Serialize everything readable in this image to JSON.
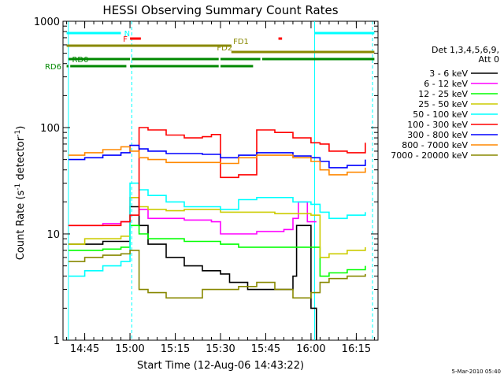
{
  "chart_data": {
    "type": "line",
    "title": "HESSI Observing Summary Count Rates",
    "xlabel": "Start Time (12-Aug-06 14:43:22)",
    "ylabel_pre": "Count Rate (s",
    "ylabel_sup": "-1",
    "ylabel_mid": " detector",
    "ylabel_sup2": "-1",
    "ylabel_post": ")",
    "yscale": "log",
    "ylim": [
      1,
      1000
    ],
    "xlim_minutes": [
      14.63,
      16.37
    ],
    "x_ticks": [
      {
        "label": "14:45",
        "v": 14.75
      },
      {
        "label": "15:00",
        "v": 15.0
      },
      {
        "label": "15:15",
        "v": 15.25
      },
      {
        "label": "15:30",
        "v": 15.5
      },
      {
        "label": "15:45",
        "v": 15.75
      },
      {
        "label": "16:00",
        "v": 16.0
      },
      {
        "label": "16:15",
        "v": 16.25
      }
    ],
    "y_ticks": [
      {
        "label": "1",
        "v": 1
      },
      {
        "label": "10",
        "v": 10
      },
      {
        "label": "100",
        "v": 100
      },
      {
        "label": "1000",
        "v": 1000
      }
    ],
    "legend_title": "Det 1,3,4,5,6,9,",
    "legend_subtitle": "Att 0",
    "series": [
      {
        "name": "3 - 6 keV",
        "color": "#000000",
        "x": [
          14.66,
          14.75,
          14.85,
          14.95,
          15.0,
          15.05,
          15.1,
          15.2,
          15.3,
          15.4,
          15.5,
          15.55,
          15.65,
          15.75,
          15.85,
          15.9,
          15.92,
          16.0,
          16.03
        ],
        "y": [
          8,
          8,
          8.5,
          8.5,
          18,
          12,
          8,
          6,
          5,
          4.5,
          4.2,
          3.5,
          3,
          3,
          3,
          4,
          12,
          2,
          1
        ]
      },
      {
        "name": "6 - 12 keV",
        "color": "#ff00ff",
        "x": [
          14.66,
          14.75,
          14.85,
          14.95,
          15.0,
          15.05,
          15.1,
          15.2,
          15.3,
          15.4,
          15.45,
          15.5,
          15.6,
          15.7,
          15.8,
          15.85,
          15.9,
          15.93,
          15.98,
          16.03
        ],
        "y": [
          12,
          12,
          12.5,
          13,
          22,
          17,
          14,
          14,
          13.5,
          13.5,
          13,
          10,
          10,
          10.5,
          10.5,
          11,
          14,
          20,
          13,
          13
        ]
      },
      {
        "name": "12 - 25 keV",
        "color": "#00ff00",
        "x": [
          14.66,
          14.75,
          14.85,
          14.95,
          15.0,
          15.05,
          15.1,
          15.2,
          15.3,
          15.4,
          15.5,
          15.6,
          15.7,
          15.8,
          15.9,
          16.0,
          16.05,
          16.1,
          16.2,
          16.3
        ],
        "y": [
          7,
          7,
          7.2,
          7.5,
          12,
          10,
          9,
          9,
          8.5,
          8.5,
          8,
          7.5,
          7.5,
          7.5,
          7.5,
          7.5,
          4,
          4.3,
          4.6,
          5
        ]
      },
      {
        "name": "25 - 50 keV",
        "color": "#cccc00",
        "x": [
          14.66,
          14.75,
          14.85,
          14.95,
          15.0,
          15.05,
          15.1,
          15.2,
          15.3,
          15.4,
          15.5,
          15.6,
          15.7,
          15.8,
          15.9,
          16.0,
          16.05,
          16.1,
          16.2,
          16.3
        ],
        "y": [
          8,
          9,
          9,
          9.5,
          22,
          18,
          17,
          16.5,
          17,
          17,
          16,
          16,
          16,
          15.5,
          15.5,
          15,
          6,
          6.5,
          7,
          7.5
        ]
      },
      {
        "name": "50 - 100 keV",
        "color": "#00ffff",
        "x": [
          14.66,
          14.75,
          14.85,
          14.95,
          15.0,
          15.05,
          15.1,
          15.2,
          15.3,
          15.4,
          15.5,
          15.6,
          15.7,
          15.8,
          15.9,
          16.0,
          16.05,
          16.1,
          16.2,
          16.3
        ],
        "y": [
          4,
          4.5,
          5,
          5.5,
          30,
          26,
          23,
          20,
          18,
          18,
          17,
          21,
          22,
          22,
          20,
          19,
          16,
          14,
          15,
          16
        ]
      },
      {
        "name": "100 - 300 keV",
        "color": "#ff0000",
        "x": [
          14.66,
          14.75,
          14.85,
          14.95,
          15.0,
          15.05,
          15.1,
          15.2,
          15.3,
          15.4,
          15.45,
          15.5,
          15.6,
          15.7,
          15.8,
          15.9,
          16.0,
          16.05,
          16.1,
          16.2,
          16.3
        ],
        "y": [
          12,
          12,
          12,
          13,
          15,
          100,
          95,
          85,
          80,
          82,
          86,
          34,
          36,
          95,
          90,
          80,
          72,
          70,
          60,
          58,
          72
        ]
      },
      {
        "name": "300 - 800 keV",
        "color": "#0000ff",
        "x": [
          14.66,
          14.75,
          14.85,
          14.95,
          15.0,
          15.05,
          15.1,
          15.2,
          15.3,
          15.4,
          15.5,
          15.6,
          15.7,
          15.8,
          15.9,
          16.0,
          16.05,
          16.1,
          16.2,
          16.3
        ],
        "y": [
          50,
          52,
          55,
          58,
          68,
          63,
          60,
          57,
          57,
          56,
          52,
          55,
          58,
          58,
          54,
          52,
          48,
          42,
          44,
          50
        ]
      },
      {
        "name": "800 - 7000 keV",
        "color": "#ff8800",
        "x": [
          14.66,
          14.75,
          14.85,
          14.95,
          15.0,
          15.05,
          15.1,
          15.2,
          15.3,
          15.4,
          15.5,
          15.6,
          15.7,
          15.8,
          15.9,
          16.0,
          16.05,
          16.1,
          16.2,
          16.3
        ],
        "y": [
          55,
          58,
          62,
          66,
          60,
          52,
          50,
          47,
          47,
          47,
          46,
          52,
          55,
          55,
          52,
          48,
          40,
          36,
          38,
          42
        ]
      },
      {
        "name": "7000 - 20000 keV",
        "color": "#888800",
        "x": [
          14.66,
          14.75,
          14.85,
          14.95,
          15.0,
          15.05,
          15.1,
          15.2,
          15.3,
          15.4,
          15.5,
          15.6,
          15.7,
          15.8,
          15.9,
          16.0,
          16.05,
          16.1,
          16.2,
          16.3
        ],
        "y": [
          5.5,
          6,
          6.3,
          6.5,
          7,
          3,
          2.8,
          2.5,
          2.5,
          3,
          3,
          3.2,
          3.5,
          3,
          2.5,
          2.8,
          3.5,
          3.8,
          4,
          4.2
        ]
      }
    ],
    "flags": [
      {
        "label": "N",
        "color": "#00ffff",
        "row": 0,
        "segments": [
          [
            14.65,
            14.95
          ],
          [
            16.02,
            16.35
          ]
        ]
      },
      {
        "label": "F",
        "color": "#ff0000",
        "row": 1,
        "segments": [
          [
            15.0,
            15.06
          ],
          [
            15.82,
            15.84
          ]
        ]
      },
      {
        "label": "FD1",
        "color": "#888800",
        "row": 2,
        "segments": [
          [
            14.65,
            15.56
          ]
        ]
      },
      {
        "label": "FD2",
        "color": "#888800",
        "row": 3,
        "segments": [
          [
            15.56,
            16.35
          ]
        ]
      },
      {
        "label": "RD0",
        "color": "#008800",
        "row": 4,
        "segments": [
          [
            14.66,
            15.0
          ],
          [
            15.01,
            15.49
          ],
          [
            15.5,
            15.72
          ],
          [
            15.73,
            16.35
          ]
        ]
      },
      {
        "label": "RD6",
        "color": "#008800",
        "row": 5,
        "segments": [
          [
            14.65,
            14.66
          ],
          [
            14.67,
            14.98
          ],
          [
            15.0,
            15.49
          ],
          [
            15.5,
            15.68
          ]
        ]
      }
    ],
    "vlines_solid": [
      14.66,
      16.02
    ],
    "vlines_dashed": [
      15.01,
      16.34
    ],
    "footer": "5-Mar-2010 05:40"
  }
}
